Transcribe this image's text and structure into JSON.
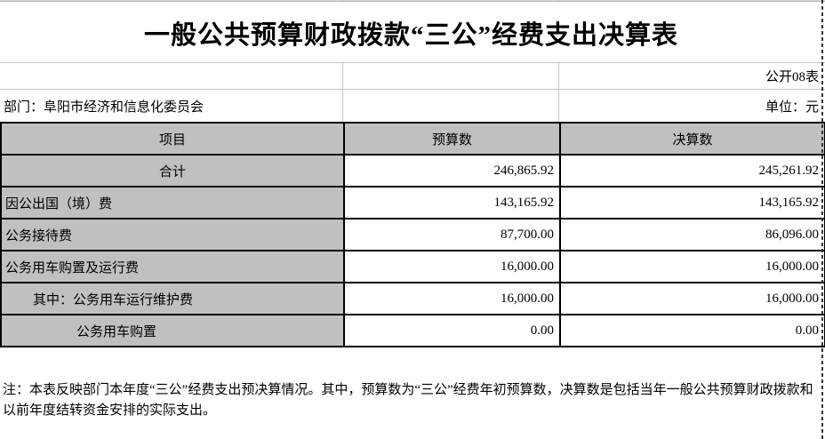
{
  "sheet": {
    "title": "一般公共预算财政拨款“三公”经费支出决算表",
    "table_code": "公开08表",
    "department": "部门：阜阳市经济和信息化委员会",
    "unit": "单位：元",
    "note": "注：本表反映部门本年度“三公”经费支出预决算情况。其中，预算数为“三公”经费年初预算数，决算数是包括当年一般公共预算财政拨款和以前年度结转资金安排的实际支出。"
  },
  "table": {
    "headers": {
      "item": "项目",
      "budget": "预算数",
      "final": "决算数"
    },
    "rows": [
      {
        "item": "合计",
        "budget": "246,865.92",
        "final": "245,261.92"
      },
      {
        "item": "因公出国（境）费",
        "budget": "143,165.92",
        "final": "143,165.92"
      },
      {
        "item": "公务接待费",
        "budget": "87,700.00",
        "final": "86,096.00"
      },
      {
        "item": "公务用车购置及运行费",
        "budget": "16,000.00",
        "final": "16,000.00"
      },
      {
        "item": "其中：公务用车运行维护费",
        "budget": "16,000.00",
        "final": "16,000.00"
      },
      {
        "item": "公务用车购置",
        "budget": "0.00",
        "final": "0.00"
      }
    ]
  },
  "colors": {
    "header_fill": "#c0c0c0",
    "table_border": "#000000",
    "gridline": "#c6c6c6",
    "annotation_green": "#00a650",
    "page_break_dash": "#333333"
  }
}
